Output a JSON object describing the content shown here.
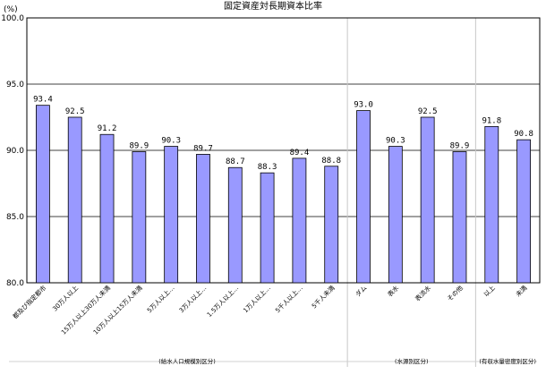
{
  "chart_data": {
    "type": "bar",
    "title": "固定資産対長期資本比率",
    "unit_label": "(%)",
    "ylim": [
      80.0,
      100.0
    ],
    "yticks": [
      "80.0",
      "85.0",
      "90.0",
      "95.0",
      "100.0"
    ],
    "grid": true,
    "categories": [
      "都及び指定都市",
      "30万人以上",
      "15万人以上30万人未満",
      "10万人以上15万人未満",
      "5万人以上…",
      "3万人以上…",
      "1.5万人以上…",
      "1万人以上…",
      "5千人以上…",
      "5千人未満",
      "ダム",
      "表水",
      "表流水",
      "その他",
      "以上",
      "未満"
    ],
    "values": [
      93.4,
      92.5,
      91.2,
      89.9,
      90.3,
      89.7,
      88.7,
      88.3,
      89.4,
      88.8,
      93.0,
      90.3,
      92.5,
      89.9,
      91.8,
      90.8
    ],
    "value_labels": [
      "93.4",
      "92.5",
      "91.2",
      "89.9",
      "90.3",
      "89.7",
      "88.7",
      "88.3",
      "89.4",
      "88.8",
      "93.0",
      "90.3",
      "92.5",
      "89.9",
      "91.8",
      "90.8"
    ],
    "groups": [
      "(給水人口規模別区分)",
      "(水源別区分)",
      "(有収水量密度別区分)"
    ],
    "bar_color": "#9999ff"
  }
}
